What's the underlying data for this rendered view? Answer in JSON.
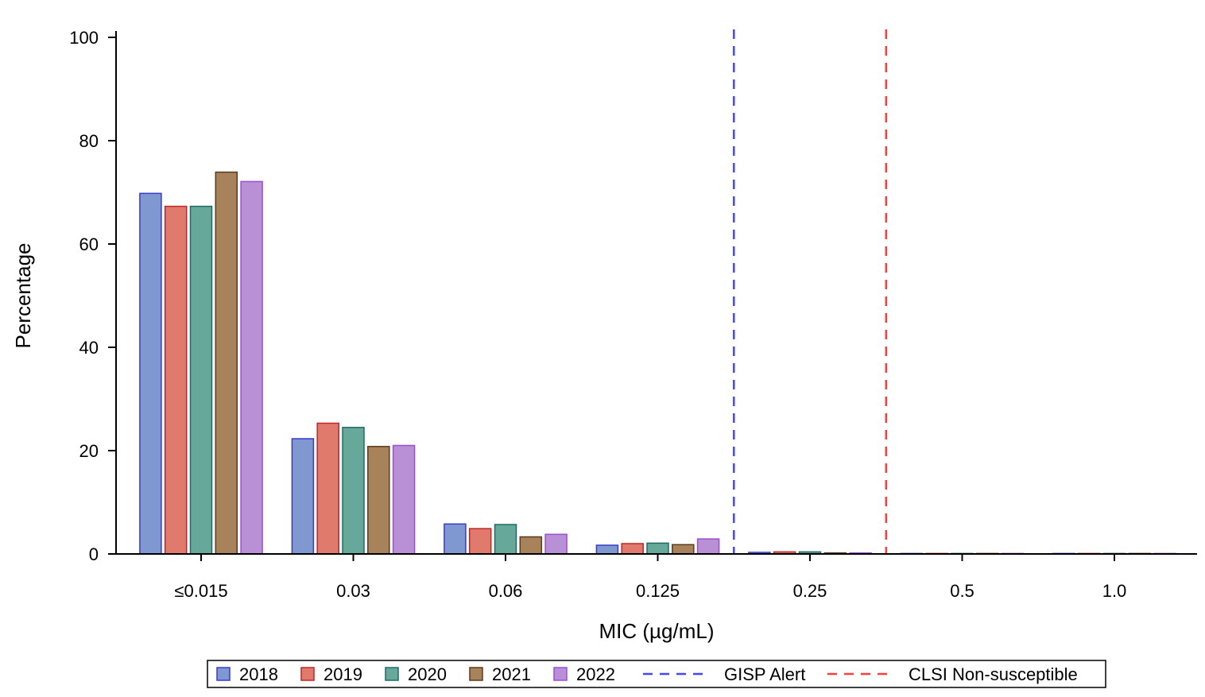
{
  "chart_data": {
    "type": "bar",
    "title": "",
    "xlabel": "MIC (µg/mL)",
    "ylabel": "Percentage",
    "ylim": [
      0,
      100
    ],
    "yticks": [
      0,
      20,
      40,
      60,
      80,
      100
    ],
    "categories": [
      "≤0.015",
      "0.03",
      "0.06",
      "0.125",
      "0.25",
      "0.5",
      "1.0"
    ],
    "series": [
      {
        "name": "2018",
        "color": "#7f98d0",
        "stroke": "#3a3ad0",
        "values": [
          69.8,
          22.3,
          5.8,
          1.7,
          0.3,
          0.1,
          0.1
        ]
      },
      {
        "name": "2019",
        "color": "#e07a6c",
        "stroke": "#c0262a",
        "values": [
          67.3,
          25.3,
          4.9,
          2.0,
          0.4,
          0.1,
          0.1
        ]
      },
      {
        "name": "2020",
        "color": "#66a89a",
        "stroke": "#1f6b63",
        "values": [
          67.3,
          24.5,
          5.7,
          2.1,
          0.4,
          0.1,
          0.1
        ]
      },
      {
        "name": "2021",
        "color": "#a8825a",
        "stroke": "#5a3b1a",
        "values": [
          73.9,
          20.8,
          3.3,
          1.8,
          0.2,
          0.1,
          0.1
        ]
      },
      {
        "name": "2022",
        "color": "#b98fd5",
        "stroke": "#9a4fd6",
        "values": [
          72.1,
          21.0,
          3.8,
          2.9,
          0.2,
          0.1,
          0.1
        ]
      }
    ],
    "reference_lines": [
      {
        "name": "GISP Alert",
        "between": [
          "0.125",
          "0.25"
        ],
        "color": "#4646ff"
      },
      {
        "name": "CLSI Non-susceptible",
        "between": [
          "0.25",
          "0.5"
        ],
        "color": "#ff3c3c"
      }
    ],
    "grid": false,
    "legend": "bottom"
  }
}
